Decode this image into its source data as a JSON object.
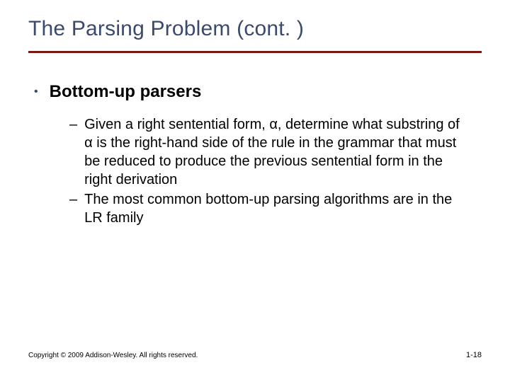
{
  "title": "The Parsing Problem (cont. )",
  "colors": {
    "title": "#3b4a6b",
    "rule": "#7a1818",
    "body": "#000000",
    "background": "#ffffff"
  },
  "typography": {
    "title_fontsize_pt": 30,
    "l1_fontsize_pt": 24,
    "l2_fontsize_pt": 20,
    "footer_fontsize_pt": 10
  },
  "bullets": {
    "l1_glyph": "•",
    "l2_glyph": "–"
  },
  "l1_items": [
    {
      "text": "Bottom-up parsers"
    }
  ],
  "l2_items": [
    {
      "text": "Given a right sentential form, α, determine what substring of α is the right-hand side of the rule in the grammar that must be reduced to produce the previous sentential form in the right derivation"
    },
    {
      "text": "The most common bottom-up parsing algorithms are in the LR family"
    }
  ],
  "footer": {
    "copyright": "Copyright © 2009 Addison-Wesley. All rights reserved.",
    "page": "1-18"
  }
}
